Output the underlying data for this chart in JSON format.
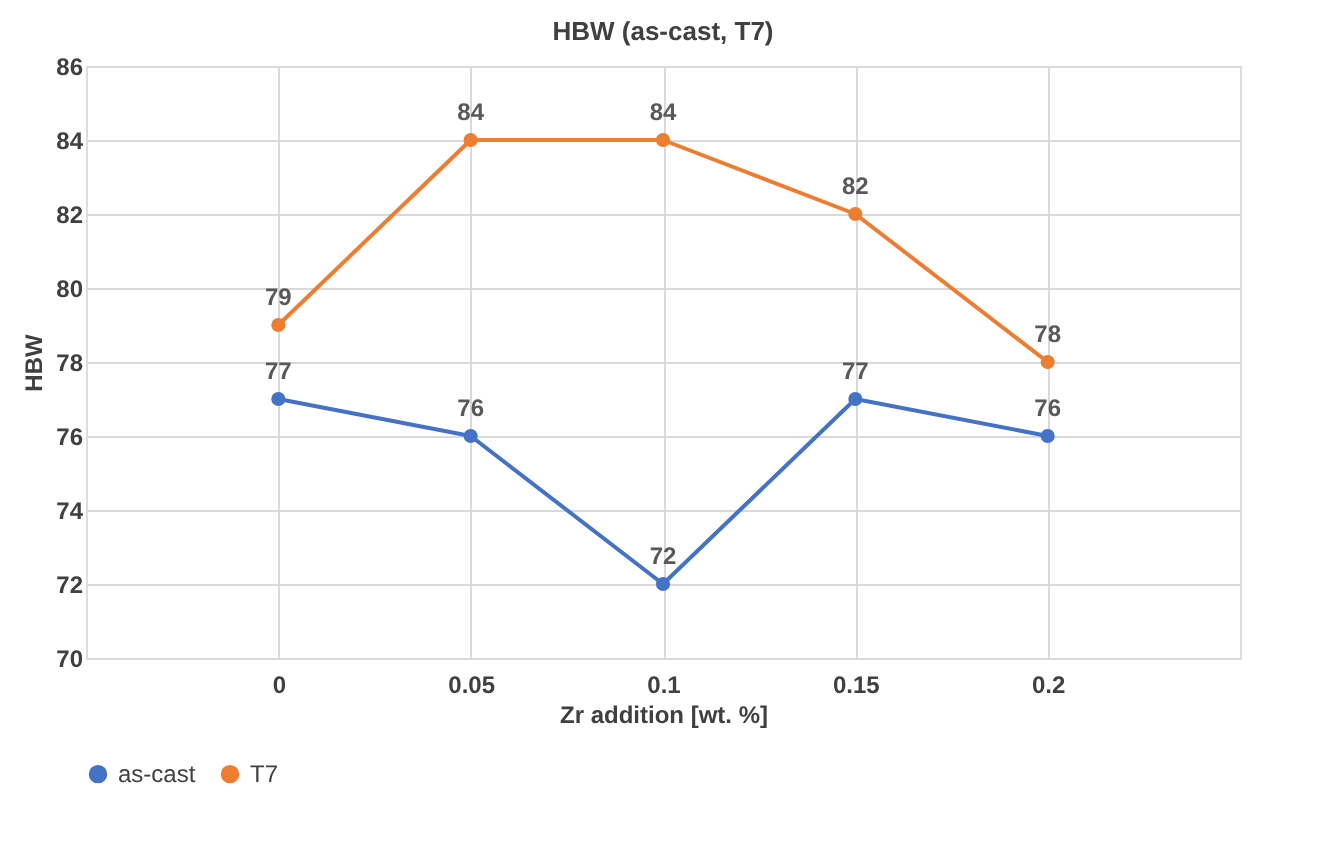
{
  "chart_data": {
    "type": "line",
    "title": "HBW (as-cast, T7)",
    "xlabel": "Zr addition [wt. %]",
    "ylabel": "HBW",
    "x": [
      0,
      0.05,
      0.1,
      0.15,
      0.2
    ],
    "series": [
      {
        "name": "as-cast",
        "color": "#4472c4",
        "values": [
          77,
          76,
          72,
          77,
          76
        ]
      },
      {
        "name": "T7",
        "color": "#ed7d31",
        "values": [
          79,
          84,
          84,
          82,
          78
        ]
      }
    ],
    "xlim": [
      -0.05,
      0.25
    ],
    "xticks": [
      0,
      0.05,
      0.1,
      0.15,
      0.2
    ],
    "ylim": [
      70,
      86
    ],
    "yticks": [
      70,
      72,
      74,
      76,
      78,
      80,
      82,
      84,
      86
    ],
    "grid": true,
    "legend": "bottom",
    "data_labels": true,
    "marker": "circle",
    "line_style": "solid"
  }
}
